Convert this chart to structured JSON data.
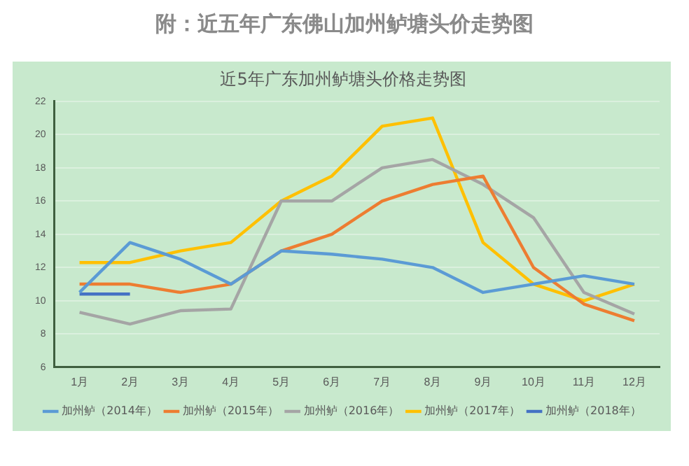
{
  "chart_data": {
    "type": "line",
    "title": "附：近五年广东佛山加州鲈塘头价走势图",
    "subtitle": "近5年广东加州鲈塘头价格走势图",
    "categories": [
      "1月",
      "2月",
      "3月",
      "4月",
      "5月",
      "6月",
      "7月",
      "8月",
      "9月",
      "10月",
      "11月",
      "12月"
    ],
    "series": [
      {
        "name": "加州鲈（2014年）",
        "color": "#5b9bd5",
        "values": [
          10.5,
          13.5,
          12.5,
          11,
          13,
          12.8,
          12.5,
          12,
          10.5,
          11,
          11.5,
          11
        ]
      },
      {
        "name": "加州鲈（2015年）",
        "color": "#ed7d31",
        "values": [
          11,
          11,
          10.5,
          11,
          13,
          14,
          16,
          17,
          17.5,
          12,
          9.8,
          8.8
        ]
      },
      {
        "name": "加州鲈（2016年）",
        "color": "#a5a5a5",
        "values": [
          9.3,
          8.6,
          9.4,
          9.5,
          16,
          16,
          18,
          18.5,
          17,
          15,
          10.5,
          9.2
        ]
      },
      {
        "name": "加州鲈（2017年）",
        "color": "#ffc000",
        "values": [
          12.3,
          12.3,
          13,
          13.5,
          16,
          17.5,
          20.5,
          21,
          13.5,
          11,
          10,
          11
        ]
      },
      {
        "name": "加州鲈（2018年）",
        "color": "#4472c4",
        "values": [
          10.4,
          10.4,
          null,
          null,
          null,
          null,
          null,
          null,
          null,
          null,
          null,
          null
        ]
      }
    ],
    "ylim": [
      6,
      22
    ],
    "yticks": [
      6,
      8,
      10,
      12,
      14,
      16,
      18,
      20,
      22
    ],
    "grid": "y",
    "legend": "bottom",
    "marker": "none",
    "line_style": "solid"
  }
}
